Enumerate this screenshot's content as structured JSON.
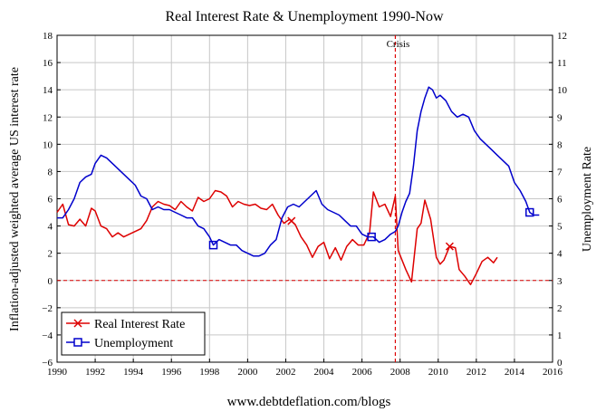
{
  "chart_data": {
    "type": "line",
    "title": "Real Interest Rate & Unemployment 1990-Now",
    "ylabel": "Inflation-adjusted weighted average US interest rate",
    "y2label": "Unemployment Rate",
    "footer": "www.debtdeflation.com/blogs",
    "annotation": "Crisis",
    "crisis_x": 2007.75,
    "xlim": [
      1990,
      2016
    ],
    "ylim": [
      -6,
      18
    ],
    "y2lim": [
      0,
      12
    ],
    "grid": true,
    "legend_position": "bottom-left",
    "xticks": [
      "1990",
      "1992",
      "1994",
      "1996",
      "1998",
      "2000",
      "2002",
      "2004",
      "2006",
      "2008",
      "2010",
      "2012",
      "2014",
      "2016"
    ],
    "yticks": [
      "−6",
      "−4",
      "−2",
      "0",
      "2",
      "4",
      "6",
      "8",
      "10",
      "12",
      "14",
      "16",
      "18"
    ],
    "y2ticks": [
      "0",
      "1",
      "2",
      "3",
      "4",
      "5",
      "6",
      "7",
      "8",
      "9",
      "10",
      "11",
      "12"
    ],
    "colors": {
      "real_interest_rate": "#dd0000",
      "unemployment": "#0000cc",
      "grid": "#c8c8c8",
      "crisis": "#dd0000"
    },
    "series": [
      {
        "name": "Real Interest Rate",
        "axis": "left",
        "marker": "x",
        "marker_x": [
          2002.3,
          2010.6
        ],
        "x": [
          1990,
          1990.3,
          1990.6,
          1990.9,
          1991.2,
          1991.5,
          1991.8,
          1992,
          1992.3,
          1992.6,
          1992.9,
          1993.2,
          1993.5,
          1993.8,
          1994.1,
          1994.4,
          1994.7,
          1995,
          1995.3,
          1995.6,
          1995.9,
          1996.2,
          1996.5,
          1996.8,
          1997.1,
          1997.4,
          1997.7,
          1998,
          1998.3,
          1998.6,
          1998.9,
          1999.2,
          1999.5,
          1999.8,
          2000.1,
          2000.4,
          2000.7,
          2001,
          2001.3,
          2001.6,
          2001.9,
          2002.2,
          2002.5,
          2002.8,
          2003.1,
          2003.4,
          2003.7,
          2004,
          2004.3,
          2004.6,
          2004.9,
          2005.2,
          2005.5,
          2005.8,
          2006.1,
          2006.4,
          2006.6,
          2006.9,
          2007.2,
          2007.5,
          2007.75,
          2007.9,
          2008.1,
          2008.3,
          2008.6,
          2008.9,
          2009.1,
          2009.3,
          2009.6,
          2009.9,
          2010.1,
          2010.3,
          2010.6,
          2010.9,
          2011.1,
          2011.4,
          2011.7,
          2012,
          2012.3,
          2012.6,
          2012.9,
          2013.1
        ],
        "values": [
          5.0,
          5.6,
          4.1,
          4.0,
          4.5,
          4.0,
          5.3,
          5.1,
          4.0,
          3.8,
          3.2,
          3.5,
          3.2,
          3.4,
          3.6,
          3.8,
          4.4,
          5.4,
          5.8,
          5.6,
          5.5,
          5.2,
          5.8,
          5.4,
          5.1,
          6.1,
          5.8,
          6.0,
          6.6,
          6.5,
          6.2,
          5.4,
          5.8,
          5.6,
          5.5,
          5.6,
          5.3,
          5.2,
          5.6,
          4.8,
          4.2,
          4.5,
          4.1,
          3.2,
          2.6,
          1.7,
          2.5,
          2.8,
          1.6,
          2.4,
          1.5,
          2.5,
          3.0,
          2.6,
          2.6,
          3.5,
          6.5,
          5.4,
          5.6,
          4.7,
          6.2,
          2.2,
          1.5,
          0.8,
          -0.1,
          3.8,
          4.2,
          5.9,
          4.5,
          1.7,
          1.2,
          1.5,
          2.5,
          2.4,
          0.8,
          0.3,
          -0.3,
          0.5,
          1.4,
          1.7,
          1.3,
          1.7
        ]
      },
      {
        "name": "Unemployment",
        "axis": "right",
        "marker": "square",
        "marker_x": [
          1998.2,
          2006.5,
          2014.8
        ],
        "x": [
          1990,
          1990.3,
          1990.6,
          1990.9,
          1991.2,
          1991.5,
          1991.8,
          1992,
          1992.3,
          1992.6,
          1992.9,
          1993.2,
          1993.5,
          1993.8,
          1994.1,
          1994.4,
          1994.7,
          1995,
          1995.3,
          1995.6,
          1995.9,
          1996.2,
          1996.5,
          1996.8,
          1997.1,
          1997.4,
          1997.7,
          1998,
          1998.2,
          1998.5,
          1998.8,
          1999.1,
          1999.4,
          1999.7,
          2000,
          2000.3,
          2000.6,
          2000.9,
          2001.2,
          2001.5,
          2001.8,
          2002.1,
          2002.4,
          2002.7,
          2003,
          2003.3,
          2003.6,
          2003.9,
          2004.2,
          2004.5,
          2004.8,
          2005.1,
          2005.4,
          2005.7,
          2006,
          2006.3,
          2006.6,
          2006.9,
          2007.2,
          2007.5,
          2007.75,
          2007.9,
          2008.1,
          2008.3,
          2008.5,
          2008.7,
          2008.9,
          2009.1,
          2009.3,
          2009.5,
          2009.7,
          2009.9,
          2010.1,
          2010.4,
          2010.7,
          2011,
          2011.3,
          2011.6,
          2011.9,
          2012.2,
          2012.5,
          2012.8,
          2013.1,
          2013.4,
          2013.7,
          2014,
          2014.3,
          2014.6,
          2014.8,
          2015,
          2015.3
        ],
        "values": [
          5.3,
          5.3,
          5.6,
          6.0,
          6.6,
          6.8,
          6.9,
          7.3,
          7.6,
          7.5,
          7.3,
          7.1,
          6.9,
          6.7,
          6.5,
          6.1,
          6.0,
          5.6,
          5.7,
          5.6,
          5.6,
          5.5,
          5.4,
          5.3,
          5.3,
          5.0,
          4.9,
          4.6,
          4.3,
          4.5,
          4.4,
          4.3,
          4.3,
          4.1,
          4.0,
          3.9,
          3.9,
          4.0,
          4.3,
          4.5,
          5.3,
          5.7,
          5.8,
          5.7,
          5.9,
          6.1,
          6.3,
          5.8,
          5.6,
          5.5,
          5.4,
          5.2,
          5.0,
          5.0,
          4.7,
          4.6,
          4.6,
          4.4,
          4.5,
          4.7,
          4.8,
          5.0,
          5.5,
          5.9,
          6.2,
          7.2,
          8.5,
          9.2,
          9.7,
          10.1,
          10.0,
          9.7,
          9.8,
          9.6,
          9.2,
          9.0,
          9.1,
          9.0,
          8.5,
          8.2,
          8.0,
          7.8,
          7.6,
          7.4,
          7.2,
          6.6,
          6.3,
          5.9,
          5.5,
          5.4,
          5.4
        ]
      }
    ]
  }
}
